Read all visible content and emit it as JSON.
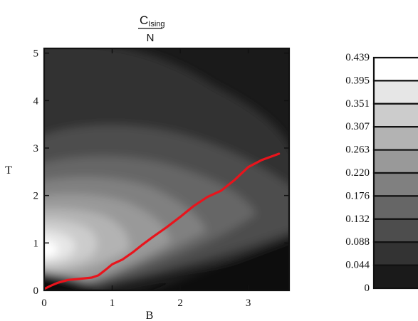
{
  "chart_data": {
    "type": "heatmap",
    "title": {
      "numerator_main": "C",
      "numerator_sub": "Ising",
      "denominator": "N"
    },
    "xlabel": "B",
    "ylabel": "T",
    "xlim": [
      0,
      3.6
    ],
    "ylim": [
      0,
      5.1
    ],
    "x_ticks": [
      "0",
      "1",
      "2",
      "3"
    ],
    "y_ticks": [
      "0",
      "1",
      "2",
      "3",
      "4",
      "5"
    ],
    "colorbar": {
      "labels": [
        "0.439",
        "0.395",
        "0.351",
        "0.307",
        "0.263",
        "0.220",
        "0.176",
        "0.132",
        "0.088",
        "0.044",
        "0"
      ],
      "levels": [
        0.439,
        0.395,
        0.351,
        0.307,
        0.263,
        0.22,
        0.176,
        0.132,
        0.088,
        0.044,
        0
      ],
      "colors": [
        "#ffffff",
        "#e6e6e6",
        "#cccccc",
        "#b3b3b3",
        "#999999",
        "#808080",
        "#666666",
        "#4d4d4d",
        "#333333",
        "#1a1a1a"
      ]
    },
    "series": [
      {
        "type": "line",
        "color": "#e8141c",
        "points": [
          [
            0.0,
            0.03
          ],
          [
            0.1,
            0.1
          ],
          [
            0.2,
            0.16
          ],
          [
            0.35,
            0.22
          ],
          [
            0.5,
            0.24
          ],
          [
            0.7,
            0.27
          ],
          [
            0.8,
            0.32
          ],
          [
            0.9,
            0.43
          ],
          [
            1.0,
            0.55
          ],
          [
            1.15,
            0.65
          ],
          [
            1.3,
            0.8
          ],
          [
            1.45,
            0.97
          ],
          [
            1.6,
            1.13
          ],
          [
            1.8,
            1.33
          ],
          [
            2.0,
            1.55
          ],
          [
            2.2,
            1.78
          ],
          [
            2.4,
            1.97
          ],
          [
            2.6,
            2.1
          ],
          [
            2.8,
            2.33
          ],
          [
            3.0,
            2.6
          ],
          [
            3.2,
            2.75
          ],
          [
            3.45,
            2.88
          ]
        ]
      }
    ]
  }
}
